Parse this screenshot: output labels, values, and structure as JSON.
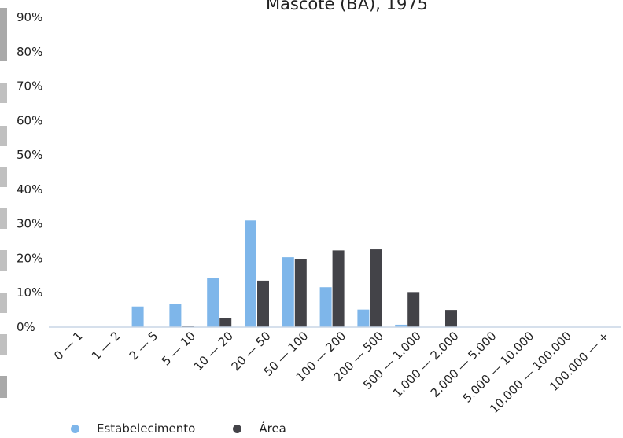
{
  "chart_data": {
    "type": "bar",
    "title": "Mascote (BA), 1975",
    "ylim": [
      0,
      90
    ],
    "yticks": [
      "0%",
      "10%",
      "20%",
      "30%",
      "40%",
      "50%",
      "60%",
      "70%",
      "80%",
      "90%"
    ],
    "categories": [
      "0 — 1",
      "1 — 2",
      "2 — 5",
      "5 — 10",
      "10 — 20",
      "20 — 50",
      "50 — 100",
      "100 — 200",
      "200 — 500",
      "500 — 1.000",
      "1.000 — 2.000",
      "2.000 — 5.000",
      "5.000 — 10.000",
      "10.000 — 100.000",
      "100.000 — +"
    ],
    "series": [
      {
        "name": "Estabelecimento",
        "color": "#7eb6ea",
        "values": [
          0,
          0,
          6.0,
          6.7,
          14.2,
          31.0,
          20.3,
          11.6,
          5.1,
          0.7,
          0,
          0,
          0,
          0,
          0
        ]
      },
      {
        "name": "Área",
        "color": "#434348",
        "values": [
          0,
          0,
          0,
          0.3,
          2.6,
          13.5,
          19.8,
          22.3,
          22.6,
          10.2,
          5.0,
          0,
          0,
          0,
          0
        ]
      }
    ],
    "grid": false,
    "legend": "bottom-left"
  }
}
